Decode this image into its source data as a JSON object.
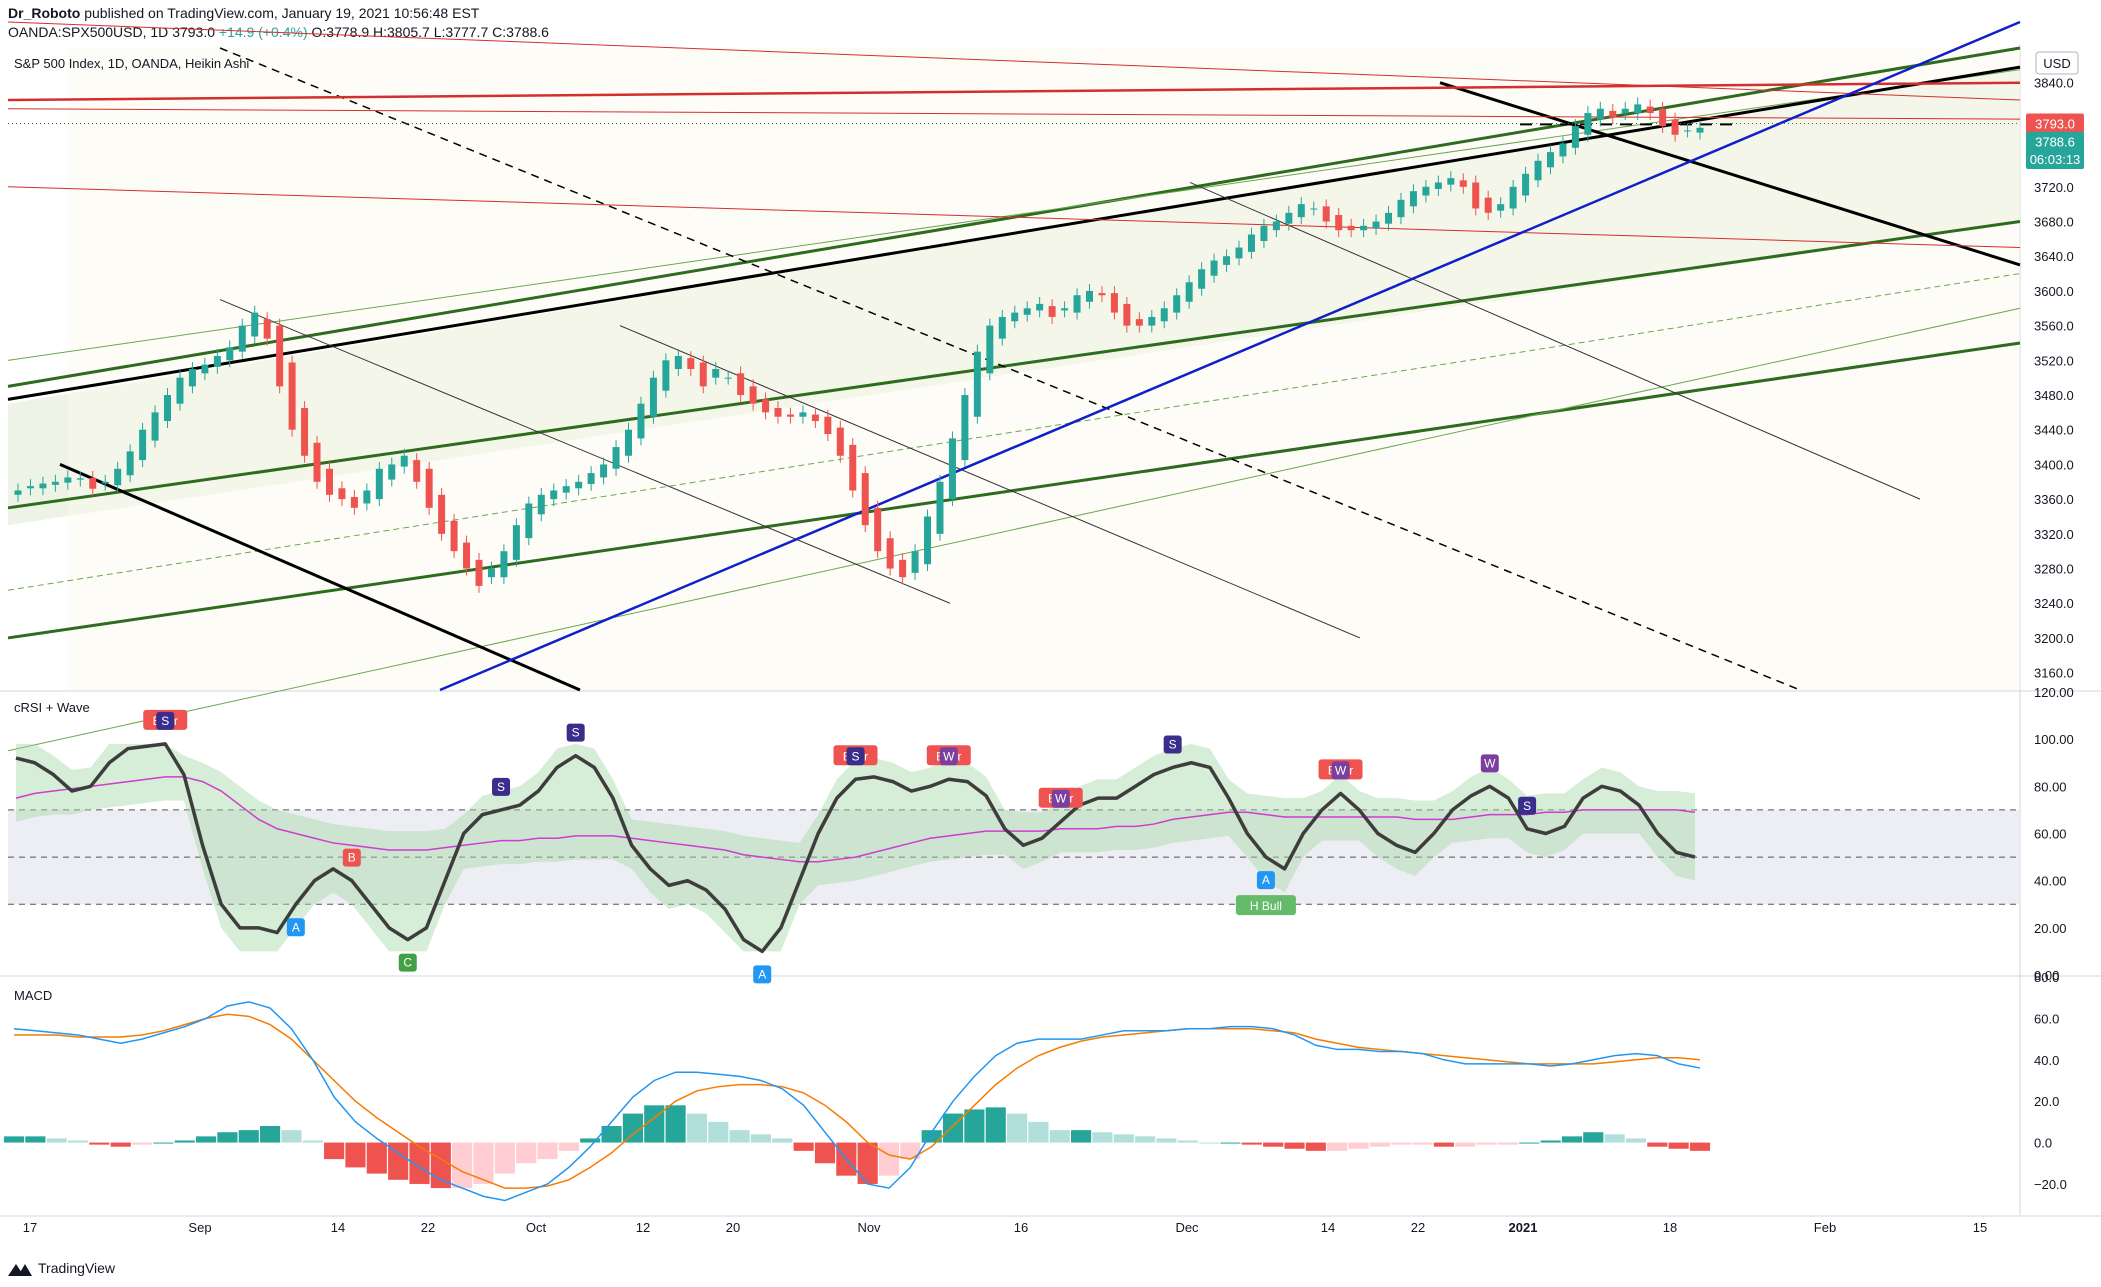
{
  "header": {
    "author": "Dr_Roboto",
    "published": "published on TradingView.com, January 19, 2021 10:56:48 EST",
    "symbol": "OANDA:SPX500USD, 1D",
    "last": "3793.0",
    "change": "+14.9 (+0.4%)",
    "ohlc": "O:3778.9 H:3805.7 L:3777.7 C:3788.6"
  },
  "footer": {
    "brand": "TradingView"
  },
  "colors": {
    "up": "#26a69a",
    "down": "#ef5350",
    "trend_green": "#2e6b1f",
    "trend_black": "#000000",
    "trend_blue": "#1020c8",
    "trend_red": "#d32f2f",
    "rsi_line": "#3d3d3d",
    "rsi_signal": "#d03cd0",
    "macd": "#2196f3",
    "signal": "#f57c00"
  },
  "chart_data": [
    {
      "type": "candlestick",
      "title": "S&P 500 Index, 1D, OANDA, Heikin Ashi",
      "currency": "USD",
      "ylim": [
        3140,
        3880
      ],
      "yticks": [
        3160,
        3200,
        3240,
        3280,
        3320,
        3360,
        3400,
        3440,
        3480,
        3520,
        3560,
        3600,
        3640,
        3680,
        3720,
        3760,
        3800,
        3840
      ],
      "ytick_labels": [
        "3160.0",
        "3200.0",
        "3240.0",
        "3280.0",
        "3320.0",
        "3360.0",
        "3400.0",
        "3440.0",
        "3480.0",
        "3520.0",
        "3560.0",
        "3600.0",
        "3640.0",
        "3680.0",
        "3720.0",
        "3760.0",
        "3800.0",
        "3840.0"
      ],
      "price_tags": [
        {
          "label": "3793.0",
          "value": 3793.0,
          "color": "#ef5350"
        },
        {
          "label": "3788.6",
          "value": 3772,
          "color": "#26a69a"
        },
        {
          "label": "06:03:13",
          "value": 3752,
          "color": "#26a69a"
        }
      ],
      "x_labels": [
        "17",
        "Sep",
        "14",
        "22",
        "Oct",
        "12",
        "20",
        "Nov",
        "16",
        "Dec",
        "14",
        "22",
        "2021",
        "18",
        "Feb",
        "15"
      ],
      "candles_close": [
        3370,
        3375,
        3378,
        3380,
        3385,
        3384,
        3372,
        3380,
        3395,
        3415,
        3440,
        3460,
        3480,
        3500,
        3510,
        3515,
        3525,
        3535,
        3560,
        3575,
        3545,
        3490,
        3440,
        3410,
        3380,
        3365,
        3360,
        3350,
        3370,
        3395,
        3400,
        3410,
        3380,
        3350,
        3320,
        3300,
        3280,
        3260,
        3280,
        3300,
        3330,
        3355,
        3365,
        3370,
        3375,
        3380,
        3390,
        3400,
        3420,
        3440,
        3470,
        3500,
        3520,
        3525,
        3510,
        3490,
        3510,
        3500,
        3480,
        3470,
        3460,
        3455,
        3455,
        3460,
        3450,
        3435,
        3410,
        3370,
        3330,
        3300,
        3280,
        3270,
        3300,
        3340,
        3380,
        3430,
        3480,
        3530,
        3560,
        3570,
        3575,
        3580,
        3585,
        3570,
        3580,
        3595,
        3600,
        3595,
        3575,
        3560,
        3560,
        3570,
        3580,
        3595,
        3610,
        3625,
        3635,
        3640,
        3650,
        3665,
        3675,
        3680,
        3690,
        3700,
        3695,
        3680,
        3670,
        3670,
        3675,
        3680,
        3690,
        3705,
        3715,
        3720,
        3725,
        3730,
        3720,
        3695,
        3690,
        3700,
        3720,
        3735,
        3750,
        3760,
        3770,
        3790,
        3805,
        3810,
        3800,
        3810,
        3815,
        3805,
        3790,
        3780,
        3785,
        3788
      ],
      "trendlines_price": [
        {
          "name": "upper-green-channel",
          "color": "#2e6b1f",
          "from": [
            "2020-08-13",
            3490
          ],
          "to": [
            "2021-01-25",
            3880
          ]
        },
        {
          "name": "lower-green-channel",
          "color": "#2e6b1f",
          "from": [
            "2020-08-13",
            3350
          ],
          "to": [
            "2021-01-25",
            3680
          ]
        }
      ]
    },
    {
      "type": "line",
      "title": "cRSI + Wave",
      "ylim": [
        0,
        120
      ],
      "yticks": [
        0,
        20,
        40,
        60,
        80,
        100,
        120
      ],
      "ytick_labels": [
        "0.00",
        "20.00",
        "40.00",
        "60.00",
        "80.00",
        "100.00",
        "120.00"
      ],
      "levels": [
        30,
        50,
        70
      ],
      "series": [
        {
          "name": "cRSI",
          "values": [
            92,
            90,
            85,
            78,
            80,
            90,
            96,
            97,
            98,
            85,
            55,
            30,
            20,
            20,
            18,
            30,
            40,
            45,
            40,
            30,
            20,
            15,
            20,
            40,
            60,
            68,
            70,
            72,
            78,
            88,
            93,
            88,
            75,
            55,
            45,
            38,
            40,
            36,
            28,
            15,
            10,
            20,
            40,
            60,
            75,
            83,
            84,
            82,
            78,
            80,
            83,
            82,
            76,
            62,
            55,
            58,
            65,
            72,
            75,
            75,
            80,
            85,
            88,
            90,
            88,
            75,
            60,
            50,
            45,
            60,
            70,
            77,
            70,
            60,
            55,
            52,
            60,
            70,
            76,
            80,
            75,
            62,
            60,
            63,
            75,
            80,
            78,
            72,
            60,
            52,
            50
          ]
        },
        {
          "name": "signal",
          "values": [
            75,
            77,
            78,
            79,
            80,
            81,
            82,
            83,
            84,
            84,
            82,
            78,
            72,
            66,
            62,
            60,
            58,
            56,
            55,
            54,
            53,
            53,
            53,
            54,
            55,
            56,
            57,
            57,
            58,
            58,
            59,
            59,
            59,
            58,
            57,
            56,
            55,
            54,
            53,
            51,
            50,
            49,
            48,
            48,
            49,
            50,
            52,
            54,
            56,
            58,
            59,
            60,
            61,
            61,
            61,
            61,
            62,
            62,
            62,
            63,
            63,
            64,
            66,
            67,
            68,
            69,
            69,
            68,
            67,
            67,
            67,
            67,
            67,
            67,
            67,
            66,
            66,
            66,
            67,
            68,
            68,
            68,
            69,
            69,
            70,
            70,
            70,
            70,
            70,
            70,
            69
          ]
        }
      ],
      "annotations": [
        {
          "text": "Bear",
          "kind": "label",
          "color": "#ef5350"
        },
        {
          "text": "S",
          "kind": "marker",
          "color": "#3a2e8c"
        },
        {
          "text": "A",
          "kind": "marker",
          "color": "#2196f3"
        },
        {
          "text": "B",
          "kind": "marker",
          "color": "#ef5350"
        },
        {
          "text": "C",
          "kind": "marker",
          "color": "#43a047"
        },
        {
          "text": "S",
          "kind": "marker",
          "color": "#3a2e8c"
        },
        {
          "text": "S",
          "kind": "marker",
          "color": "#3a2e8c"
        },
        {
          "text": "A",
          "kind": "marker",
          "color": "#2196f3"
        },
        {
          "text": "Bear",
          "kind": "label",
          "color": "#ef5350"
        },
        {
          "text": "S",
          "kind": "marker",
          "color": "#3a2e8c"
        },
        {
          "text": "Bear",
          "kind": "label",
          "color": "#ef5350"
        },
        {
          "text": "W",
          "kind": "marker",
          "color": "#7b3fa0"
        },
        {
          "text": "Bear",
          "kind": "label",
          "color": "#ef5350"
        },
        {
          "text": "W",
          "kind": "marker",
          "color": "#7b3fa0"
        },
        {
          "text": "S",
          "kind": "marker",
          "color": "#3a2e8c"
        },
        {
          "text": "A",
          "kind": "marker",
          "color": "#2196f3"
        },
        {
          "text": "H Bull",
          "kind": "label",
          "color": "#66bb6a"
        },
        {
          "text": "Bear",
          "kind": "label",
          "color": "#ef5350"
        },
        {
          "text": "W",
          "kind": "marker",
          "color": "#7b3fa0"
        },
        {
          "text": "W",
          "kind": "marker",
          "color": "#7b3fa0"
        },
        {
          "text": "S",
          "kind": "marker",
          "color": "#3a2e8c"
        }
      ]
    },
    {
      "type": "line",
      "title": "MACD",
      "ylim": [
        -35,
        80
      ],
      "yticks": [
        -20,
        0,
        20,
        40,
        60,
        80
      ],
      "ytick_labels": [
        "−20.0",
        "0.0",
        "20.0",
        "40.0",
        "60.0",
        "80.0"
      ],
      "series": [
        {
          "name": "macd",
          "values": [
            55,
            54,
            53,
            52,
            50,
            48,
            50,
            53,
            56,
            60,
            66,
            68,
            65,
            55,
            40,
            22,
            10,
            2,
            -5,
            -12,
            -18,
            -22,
            -26,
            -28,
            -24,
            -20,
            -12,
            -2,
            10,
            22,
            30,
            34,
            34,
            33,
            32,
            30,
            26,
            18,
            5,
            -8,
            -20,
            -22,
            -12,
            5,
            20,
            32,
            42,
            48,
            50,
            50,
            50,
            52,
            54,
            54,
            54,
            55,
            55,
            56,
            56,
            55,
            52,
            47,
            45,
            45,
            44,
            44,
            43,
            40,
            38,
            38,
            38,
            38,
            37,
            38,
            40,
            42,
            43,
            42,
            38,
            36
          ]
        },
        {
          "name": "signal",
          "values": [
            52,
            52,
            52,
            51,
            51,
            51,
            52,
            54,
            57,
            60,
            62,
            61,
            57,
            50,
            40,
            30,
            20,
            12,
            5,
            -2,
            -8,
            -14,
            -18,
            -22,
            -22,
            -21,
            -18,
            -12,
            -5,
            4,
            12,
            20,
            25,
            27,
            28,
            28,
            27,
            24,
            18,
            10,
            0,
            -6,
            -8,
            -2,
            8,
            18,
            28,
            36,
            42,
            46,
            49,
            51,
            52,
            53,
            54,
            55,
            55,
            55,
            55,
            54,
            53,
            50,
            48,
            46,
            45,
            44,
            43,
            42,
            41,
            40,
            39,
            38,
            38,
            38,
            38,
            39,
            40,
            41,
            41,
            40
          ]
        },
        {
          "name": "histogram",
          "values": [
            3,
            3,
            2,
            1,
            -1,
            -2,
            -1,
            0,
            1,
            3,
            5,
            6,
            8,
            6,
            1,
            -8,
            -12,
            -15,
            -18,
            -20,
            -22,
            -22,
            -20,
            -15,
            -10,
            -8,
            -4,
            2,
            8,
            14,
            18,
            18,
            14,
            10,
            6,
            4,
            2,
            -4,
            -10,
            -16,
            -20,
            -16,
            -8,
            6,
            14,
            16,
            17,
            14,
            10,
            6,
            6,
            5,
            4,
            3,
            2,
            1,
            0,
            0,
            -1,
            -2,
            -3,
            -4,
            -4,
            -3,
            -2,
            -1,
            -1,
            -2,
            -2,
            -1,
            -1,
            0,
            1,
            3,
            5,
            4,
            2,
            -2,
            -3,
            -4
          ]
        }
      ]
    }
  ]
}
